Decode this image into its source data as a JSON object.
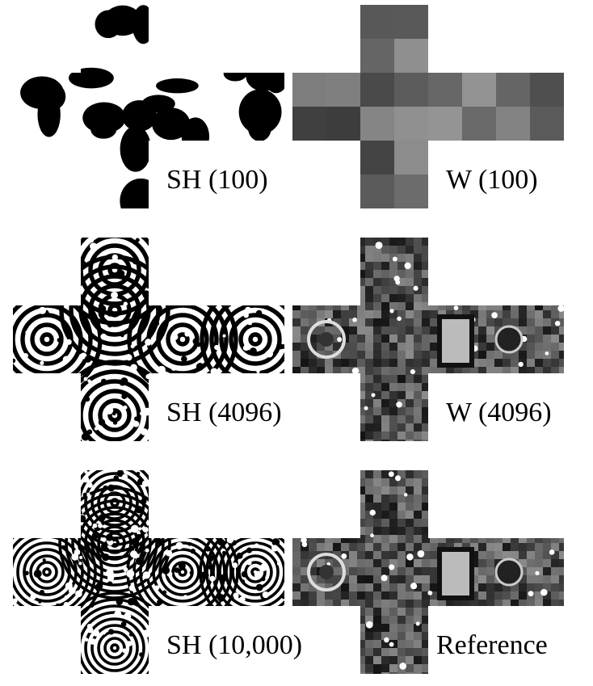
{
  "figure": {
    "panels": [
      {
        "caption": "SH (100)",
        "kind": "sh",
        "level": 0
      },
      {
        "caption": "W (100)",
        "kind": "w",
        "level": 0
      },
      {
        "caption": "SH (4096)",
        "kind": "sh",
        "level": 1
      },
      {
        "caption": "W (4096)",
        "kind": "w",
        "level": 1
      },
      {
        "caption": "SH (10,000)",
        "kind": "sh",
        "level": 2
      },
      {
        "caption": "Reference",
        "kind": "ref",
        "level": 2
      }
    ]
  }
}
